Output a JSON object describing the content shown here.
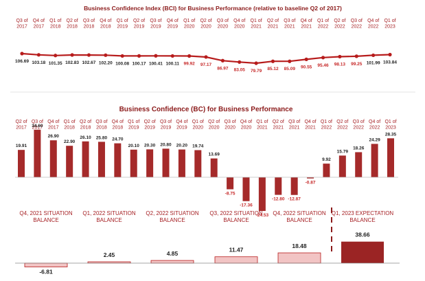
{
  "chart_data": [
    {
      "type": "line",
      "title": "Business Confidence Index (BCI) for Business Performance (relative to baseline Q2 of 2017)",
      "categories": [
        [
          "Q3 of",
          "2017"
        ],
        [
          "Q4 of",
          "2017"
        ],
        [
          "Q1 of",
          "2018"
        ],
        [
          "Q2 of",
          "2018"
        ],
        [
          "Q3 of",
          "2018"
        ],
        [
          "Q4 of",
          "2018"
        ],
        [
          "Q1 of",
          "2019"
        ],
        [
          "Q2 of",
          "2019"
        ],
        [
          "Q3 of",
          "2019"
        ],
        [
          "Q4 of",
          "2019"
        ],
        [
          "Q1 of",
          "2020"
        ],
        [
          "Q2 of",
          "2020"
        ],
        [
          "Q3 of",
          "2020"
        ],
        [
          "Q4 of",
          "2020"
        ],
        [
          "Q1 of",
          "2021"
        ],
        [
          "Q2 of",
          "2021"
        ],
        [
          "Q3 of",
          "2021"
        ],
        [
          "Q4 of",
          "2021"
        ],
        [
          "Q1 of",
          "2022"
        ],
        [
          "Q2 of",
          "2022"
        ],
        [
          "Q3 of",
          "2022"
        ],
        [
          "Q4 of",
          "2022"
        ],
        [
          "Q1 of",
          "2023"
        ]
      ],
      "values": [
        106.69,
        103.18,
        101.35,
        102.83,
        102.67,
        102.2,
        100.08,
        100.17,
        100.41,
        100.11,
        99.92,
        97.17,
        86.97,
        83.05,
        79.79,
        85.12,
        85.09,
        90.55,
        95.46,
        98.13,
        99.25,
        101.99,
        103.84
      ],
      "labels": [
        "106.69",
        "103.18",
        "101.35",
        "102.83",
        "102.67",
        "102.20",
        "100.08",
        "100.17",
        "100.41",
        "100.11",
        "99.92",
        "97.17",
        "86.97",
        "83.05",
        "79.79",
        "85.12",
        "85.09",
        "90.55",
        "95.46",
        "98.13",
        "99.25",
        "101.99",
        "103.84"
      ],
      "line_color": "#b71c1c",
      "label_colors": {
        "above_100": "#222222",
        "below_100": "#c62828"
      }
    },
    {
      "type": "bar",
      "title": "Business Confidence (BC) for Business Performance",
      "categories": [
        [
          "Q2 of",
          "2017"
        ],
        [
          "Q3 of",
          "2017"
        ],
        [
          "Q4 of",
          "2017"
        ],
        [
          "Q1 of",
          "2018"
        ],
        [
          "Q2 of",
          "2018"
        ],
        [
          "Q3 of",
          "2018"
        ],
        [
          "Q4 of",
          "2018"
        ],
        [
          "Q1 of",
          "2019"
        ],
        [
          "Q2 of",
          "2019"
        ],
        [
          "Q3 of",
          "2019"
        ],
        [
          "Q4 of",
          "2019"
        ],
        [
          "Q1 of",
          "2020"
        ],
        [
          "Q2 of",
          "2020"
        ],
        [
          "Q3 of",
          "2020"
        ],
        [
          "Q4 of",
          "2020"
        ],
        [
          "Q1 of",
          "2021"
        ],
        [
          "Q2 of",
          "2021"
        ],
        [
          "Q3 of",
          "2021"
        ],
        [
          "Q4 of",
          "2021"
        ],
        [
          "Q1 of",
          "2022"
        ],
        [
          "Q2 of",
          "2022"
        ],
        [
          "Q3 of",
          "2022"
        ],
        [
          "Q4 of",
          "2022"
        ],
        [
          "Q1 of",
          "2023"
        ]
      ],
      "values": [
        19.91,
        34.6,
        26.9,
        22.9,
        26.1,
        25.8,
        24.7,
        20.1,
        20.3,
        20.8,
        20.2,
        19.74,
        13.69,
        -8.75,
        -17.36,
        -24.53,
        -12.8,
        -12.87,
        -0.87,
        9.92,
        15.79,
        18.26,
        24.29,
        28.35
      ],
      "labels": [
        "19.91",
        "34.60",
        "26.90",
        "22.90",
        "26.10",
        "25.80",
        "24.70",
        "20.10",
        "20.30",
        "20.80",
        "20.20",
        "19.74",
        "13.69",
        "-8.75",
        "-17.36",
        "-24.53",
        "-12.80",
        "-12.87",
        "-0.87",
        "9.92",
        "15.79",
        "18.26",
        "24.29",
        "28.35"
      ],
      "bar_color": "#a52a2a",
      "negative_label_color": "#c62828"
    },
    {
      "type": "bar",
      "categories": [
        [
          "Q4, 2021 SITUATION",
          "BALANCE"
        ],
        [
          "Q1, 2022 SITUATION",
          "BALANCE"
        ],
        [
          "Q2, 2022 SITUATION",
          "BALANCE"
        ],
        [
          "Q3, 2022 SITUATION",
          "BALANCE"
        ],
        [
          "Q4, 2022 SITUATION",
          "BALANCE"
        ],
        [
          "Q1, 2023 EXPECTATION",
          "BALANCE"
        ]
      ],
      "values": [
        -6.81,
        2.45,
        4.85,
        11.47,
        18.48,
        38.66
      ],
      "labels": [
        "-6.81",
        "2.45",
        "4.85",
        "11.47",
        "18.48",
        "38.66"
      ],
      "bar_fill": "#f2c4c4",
      "bar_stroke": "#b71c1c",
      "expectation_fill": "#9b2424",
      "negative_label_color": "#c62828"
    }
  ]
}
